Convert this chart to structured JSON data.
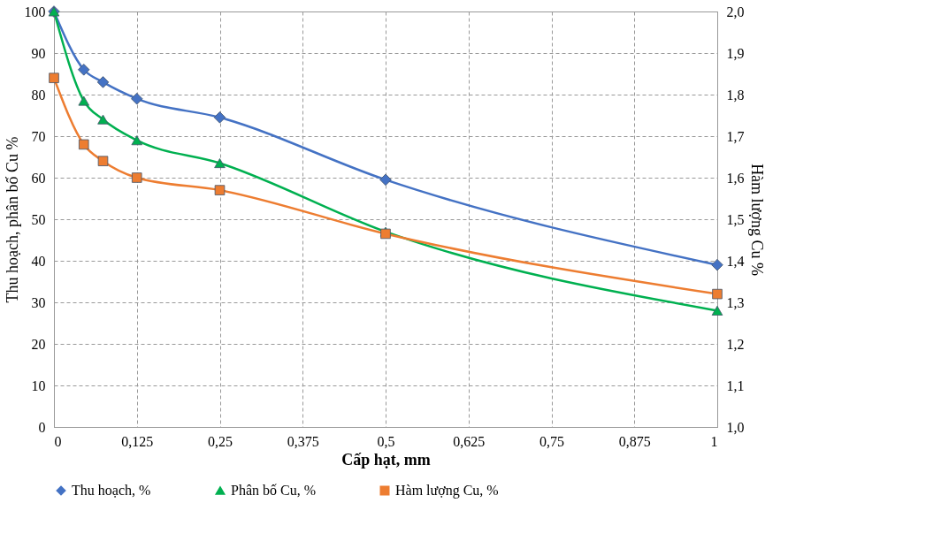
{
  "chart_data": {
    "type": "line",
    "xlabel": "Cấp hạt, mm",
    "ylabel": "Thu hoạch, phân bố  Cu %",
    "y2label": "Hàm lượng Cu %",
    "x": [
      0,
      0.045,
      0.074,
      0.125,
      0.25,
      0.5,
      1
    ],
    "series": [
      {
        "name": "Thu hoạch, %",
        "color": "#4472c4",
        "marker": "diamond",
        "values": [
          100,
          86,
          83,
          79,
          74.5,
          59.5,
          39
        ]
      },
      {
        "name": "Phân bố Cu, %",
        "color": "#00b050",
        "marker": "triangle",
        "values": [
          100,
          78.5,
          74,
          69,
          63.5,
          47,
          28
        ]
      },
      {
        "name": "Hàm lượng Cu, %",
        "color": "#ed7d31",
        "marker": "square",
        "axis": "y2",
        "values": [
          1.84,
          1.68,
          1.64,
          1.6,
          1.57,
          1.465,
          1.32
        ]
      }
    ],
    "xlim": [
      0,
      1
    ],
    "xticks": [
      0,
      {
        "value": 0.125,
        "label": "0,125"
      },
      {
        "value": 0.25,
        "label": "0,25"
      },
      {
        "value": 0.375,
        "label": "0,375"
      },
      {
        "value": 0.5,
        "label": "0,5"
      },
      {
        "value": 0.625,
        "label": "0,625"
      },
      {
        "value": 0.75,
        "label": "0,75"
      },
      {
        "value": 0.875,
        "label": "0,875"
      },
      1
    ],
    "ylim": [
      0,
      100
    ],
    "yticks": [
      0,
      10,
      20,
      30,
      40,
      50,
      60,
      70,
      80,
      90,
      100
    ],
    "y2lim": [
      1,
      2
    ],
    "y2ticks": [
      {
        "value": 1,
        "label": "1,0"
      },
      {
        "value": 1.1,
        "label": "1,1"
      },
      {
        "value": 1.2,
        "label": "1,2"
      },
      {
        "value": 1.3,
        "label": "1,3"
      },
      {
        "value": 1.4,
        "label": "1,4"
      },
      {
        "value": 1.5,
        "label": "1,5"
      },
      {
        "value": 1.6,
        "label": "1,6"
      },
      {
        "value": 1.7,
        "label": "1,7"
      },
      {
        "value": 1.8,
        "label": "1,8"
      },
      {
        "value": 1.9,
        "label": "1,9"
      },
      {
        "value": 2,
        "label": "2,0"
      }
    ],
    "grid": true,
    "legend": "bottom",
    "line_style": "solid"
  }
}
